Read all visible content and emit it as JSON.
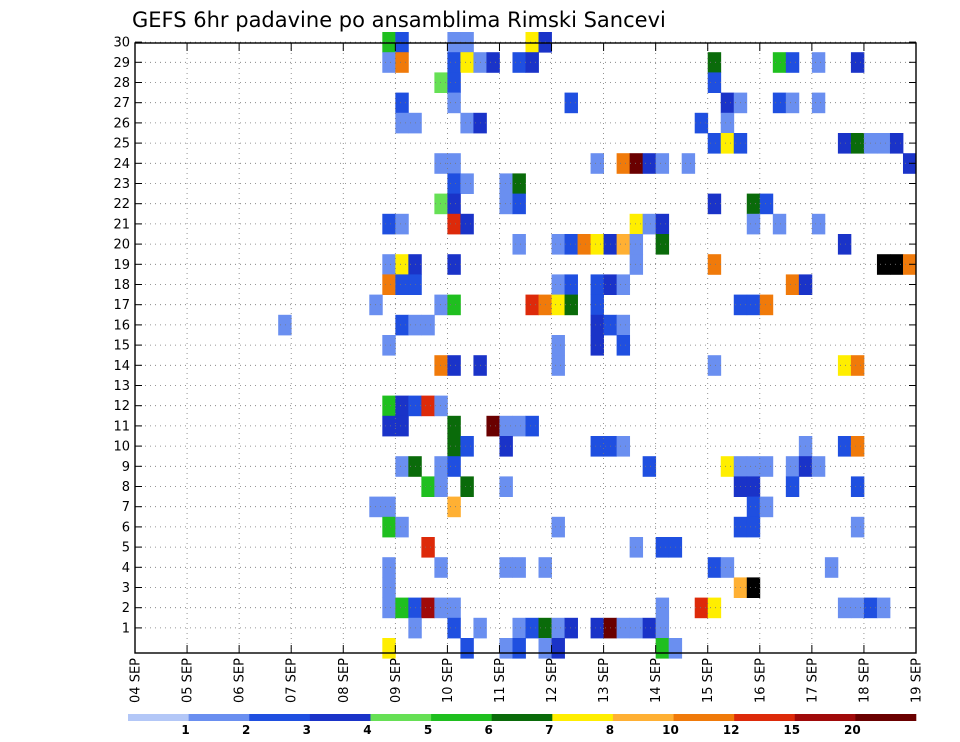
{
  "chart_data": {
    "type": "heatmap",
    "title": "GEFS 6hr padavine po ansamblima Rimski Sancevi",
    "x_tick_labels": [
      "04 SEP",
      "05 SEP",
      "06 SEP",
      "07 SEP",
      "08 SEP",
      "09 SEP",
      "10 SEP",
      "11 SEP",
      "12 SEP",
      "13 SEP",
      "14 SEP",
      "15 SEP",
      "16 SEP",
      "17 SEP",
      "18 SEP",
      "19 SEP"
    ],
    "xlim": [
      0,
      60
    ],
    "steps_per_day": 4,
    "y_tick_labels": [
      "1",
      "2",
      "3",
      "4",
      "5",
      "6",
      "7",
      "8",
      "9",
      "10",
      "11",
      "12",
      "13",
      "14",
      "15",
      "16",
      "17",
      "18",
      "19",
      "20",
      "21",
      "22",
      "23",
      "24",
      "25",
      "26",
      "27",
      "28",
      "29",
      "30"
    ],
    "ylim": [
      0,
      30
    ],
    "grid": true,
    "colorbar": {
      "labels": [
        "1",
        "2",
        "3",
        "4",
        "5",
        "6",
        "7",
        "8",
        "10",
        "12",
        "15",
        "20"
      ],
      "colors": [
        "#b3c7f7",
        "#6a8ff0",
        "#1f4fe0",
        "#1a33c8",
        "#66e055",
        "#1fbf1f",
        "#0a6b0a",
        "#ffee00",
        "#ffb033",
        "#f07a0a",
        "#dd2a0a",
        "#a00a0a",
        "#6a0000"
      ]
    },
    "cells": [
      [
        19,
        30,
        5
      ],
      [
        20,
        30,
        2
      ],
      [
        24,
        30,
        1
      ],
      [
        25,
        30,
        1
      ],
      [
        30,
        30,
        7
      ],
      [
        31,
        30,
        3
      ],
      [
        19,
        29,
        1
      ],
      [
        20,
        29,
        9
      ],
      [
        24,
        29,
        2
      ],
      [
        25,
        29,
        7
      ],
      [
        26,
        29,
        1
      ],
      [
        27,
        29,
        3
      ],
      [
        29,
        29,
        2
      ],
      [
        30,
        29,
        3
      ],
      [
        44,
        29,
        6
      ],
      [
        49,
        29,
        5
      ],
      [
        50,
        29,
        2
      ],
      [
        52,
        29,
        1
      ],
      [
        55,
        29,
        3
      ],
      [
        23,
        28,
        4
      ],
      [
        24,
        28,
        2
      ],
      [
        44,
        28,
        2
      ],
      [
        20,
        27,
        2
      ],
      [
        24,
        27,
        1
      ],
      [
        33,
        27,
        2
      ],
      [
        45,
        27,
        3
      ],
      [
        46,
        27,
        1
      ],
      [
        49,
        27,
        2
      ],
      [
        50,
        27,
        1
      ],
      [
        52,
        27,
        1
      ],
      [
        20,
        26,
        1
      ],
      [
        21,
        26,
        1
      ],
      [
        25,
        26,
        1
      ],
      [
        26,
        26,
        3
      ],
      [
        43,
        26,
        2
      ],
      [
        45,
        26,
        1
      ],
      [
        44,
        25,
        2
      ],
      [
        45,
        25,
        7
      ],
      [
        46,
        25,
        2
      ],
      [
        54,
        25,
        3
      ],
      [
        55,
        25,
        6
      ],
      [
        56,
        25,
        1
      ],
      [
        57,
        25,
        1
      ],
      [
        58,
        25,
        3
      ],
      [
        23,
        24,
        1
      ],
      [
        24,
        24,
        1
      ],
      [
        35,
        24,
        1
      ],
      [
        37,
        24,
        9
      ],
      [
        38,
        24,
        12
      ],
      [
        39,
        24,
        3
      ],
      [
        40,
        24,
        1
      ],
      [
        42,
        24,
        1
      ],
      [
        59,
        24,
        3
      ],
      [
        24,
        23,
        2
      ],
      [
        25,
        23,
        1
      ],
      [
        28,
        23,
        1
      ],
      [
        29,
        23,
        6
      ],
      [
        23,
        22,
        4
      ],
      [
        24,
        22,
        3
      ],
      [
        28,
        22,
        1
      ],
      [
        29,
        22,
        2
      ],
      [
        44,
        22,
        3
      ],
      [
        47,
        22,
        6
      ],
      [
        48,
        22,
        2
      ],
      [
        19,
        21,
        2
      ],
      [
        20,
        21,
        1
      ],
      [
        24,
        21,
        10
      ],
      [
        25,
        21,
        3
      ],
      [
        38,
        21,
        7
      ],
      [
        39,
        21,
        1
      ],
      [
        40,
        21,
        3
      ],
      [
        47,
        21,
        1
      ],
      [
        49,
        21,
        1
      ],
      [
        52,
        21,
        1
      ],
      [
        29,
        20,
        1
      ],
      [
        32,
        20,
        1
      ],
      [
        33,
        20,
        2
      ],
      [
        34,
        20,
        9
      ],
      [
        35,
        20,
        7
      ],
      [
        36,
        20,
        3
      ],
      [
        37,
        20,
        8
      ],
      [
        38,
        20,
        1
      ],
      [
        40,
        20,
        6
      ],
      [
        54,
        20,
        3
      ],
      [
        19,
        19,
        1
      ],
      [
        20,
        19,
        7
      ],
      [
        21,
        19,
        3
      ],
      [
        24,
        19,
        3
      ],
      [
        38,
        19,
        1
      ],
      [
        44,
        19,
        9
      ],
      [
        57,
        19,
        13
      ],
      [
        58,
        19,
        13
      ],
      [
        59,
        19,
        9
      ],
      [
        19,
        18,
        9
      ],
      [
        20,
        18,
        2
      ],
      [
        21,
        18,
        2
      ],
      [
        32,
        18,
        1
      ],
      [
        33,
        18,
        2
      ],
      [
        35,
        18,
        2
      ],
      [
        36,
        18,
        3
      ],
      [
        37,
        18,
        1
      ],
      [
        50,
        18,
        9
      ],
      [
        51,
        18,
        3
      ],
      [
        18,
        17,
        1
      ],
      [
        23,
        17,
        1
      ],
      [
        24,
        17,
        5
      ],
      [
        30,
        17,
        10
      ],
      [
        31,
        17,
        9
      ],
      [
        32,
        17,
        7
      ],
      [
        33,
        17,
        6
      ],
      [
        35,
        17,
        2
      ],
      [
        46,
        17,
        2
      ],
      [
        47,
        17,
        2
      ],
      [
        48,
        17,
        9
      ],
      [
        11,
        16,
        1
      ],
      [
        20,
        16,
        2
      ],
      [
        21,
        16,
        1
      ],
      [
        22,
        16,
        1
      ],
      [
        35,
        16,
        3
      ],
      [
        36,
        16,
        2
      ],
      [
        37,
        16,
        1
      ],
      [
        19,
        15,
        1
      ],
      [
        32,
        15,
        1
      ],
      [
        35,
        15,
        3
      ],
      [
        37,
        15,
        2
      ],
      [
        23,
        14,
        9
      ],
      [
        24,
        14,
        3
      ],
      [
        26,
        14,
        3
      ],
      [
        32,
        14,
        1
      ],
      [
        44,
        14,
        1
      ],
      [
        54,
        14,
        7
      ],
      [
        55,
        14,
        9
      ],
      [
        19,
        12,
        5
      ],
      [
        20,
        12,
        3
      ],
      [
        21,
        12,
        2
      ],
      [
        22,
        12,
        10
      ],
      [
        23,
        12,
        1
      ],
      [
        19,
        11,
        3
      ],
      [
        20,
        11,
        3
      ],
      [
        24,
        11,
        6
      ],
      [
        27,
        11,
        12
      ],
      [
        28,
        11,
        1
      ],
      [
        29,
        11,
        1
      ],
      [
        30,
        11,
        2
      ],
      [
        24,
        10,
        6
      ],
      [
        25,
        10,
        2
      ],
      [
        28,
        10,
        3
      ],
      [
        35,
        10,
        2
      ],
      [
        36,
        10,
        2
      ],
      [
        37,
        10,
        1
      ],
      [
        51,
        10,
        1
      ],
      [
        54,
        10,
        2
      ],
      [
        55,
        10,
        9
      ],
      [
        20,
        9,
        1
      ],
      [
        21,
        9,
        6
      ],
      [
        23,
        9,
        1
      ],
      [
        24,
        9,
        2
      ],
      [
        39,
        9,
        2
      ],
      [
        45,
        9,
        7
      ],
      [
        46,
        9,
        1
      ],
      [
        47,
        9,
        1
      ],
      [
        48,
        9,
        1
      ],
      [
        50,
        9,
        1
      ],
      [
        51,
        9,
        3
      ],
      [
        52,
        9,
        1
      ],
      [
        22,
        8,
        5
      ],
      [
        23,
        8,
        1
      ],
      [
        25,
        8,
        6
      ],
      [
        28,
        8,
        1
      ],
      [
        46,
        8,
        3
      ],
      [
        47,
        8,
        3
      ],
      [
        50,
        8,
        2
      ],
      [
        55,
        8,
        2
      ],
      [
        18,
        7,
        1
      ],
      [
        19,
        7,
        1
      ],
      [
        24,
        7,
        8
      ],
      [
        47,
        7,
        2
      ],
      [
        48,
        7,
        1
      ],
      [
        19,
        6,
        5
      ],
      [
        20,
        6,
        1
      ],
      [
        32,
        6,
        1
      ],
      [
        46,
        6,
        2
      ],
      [
        47,
        6,
        2
      ],
      [
        55,
        6,
        1
      ],
      [
        22,
        5,
        10
      ],
      [
        38,
        5,
        1
      ],
      [
        40,
        5,
        2
      ],
      [
        41,
        5,
        2
      ],
      [
        19,
        4,
        1
      ],
      [
        23,
        4,
        1
      ],
      [
        28,
        4,
        1
      ],
      [
        29,
        4,
        1
      ],
      [
        31,
        4,
        1
      ],
      [
        44,
        4,
        2
      ],
      [
        45,
        4,
        1
      ],
      [
        53,
        4,
        1
      ],
      [
        19,
        3,
        1
      ],
      [
        46,
        3,
        8
      ],
      [
        47,
        3,
        13
      ],
      [
        19,
        2,
        1
      ],
      [
        20,
        2,
        5
      ],
      [
        21,
        2,
        2
      ],
      [
        22,
        2,
        11
      ],
      [
        23,
        2,
        1
      ],
      [
        24,
        2,
        1
      ],
      [
        40,
        2,
        1
      ],
      [
        43,
        2,
        10
      ],
      [
        44,
        2,
        7
      ],
      [
        54,
        2,
        1
      ],
      [
        55,
        2,
        1
      ],
      [
        56,
        2,
        2
      ],
      [
        57,
        2,
        1
      ],
      [
        21,
        1,
        1
      ],
      [
        24,
        1,
        2
      ],
      [
        26,
        1,
        1
      ],
      [
        29,
        1,
        1
      ],
      [
        30,
        1,
        2
      ],
      [
        31,
        1,
        6
      ],
      [
        32,
        1,
        1
      ],
      [
        33,
        1,
        3
      ],
      [
        35,
        1,
        3
      ],
      [
        36,
        1,
        12
      ],
      [
        37,
        1,
        1
      ],
      [
        38,
        1,
        1
      ],
      [
        39,
        1,
        3
      ],
      [
        40,
        1,
        1
      ],
      [
        19,
        0,
        7
      ],
      [
        25,
        0,
        2
      ],
      [
        28,
        0,
        1
      ],
      [
        29,
        0,
        2
      ],
      [
        31,
        0,
        1
      ],
      [
        32,
        0,
        3
      ],
      [
        40,
        0,
        5
      ],
      [
        41,
        0,
        1
      ]
    ]
  }
}
